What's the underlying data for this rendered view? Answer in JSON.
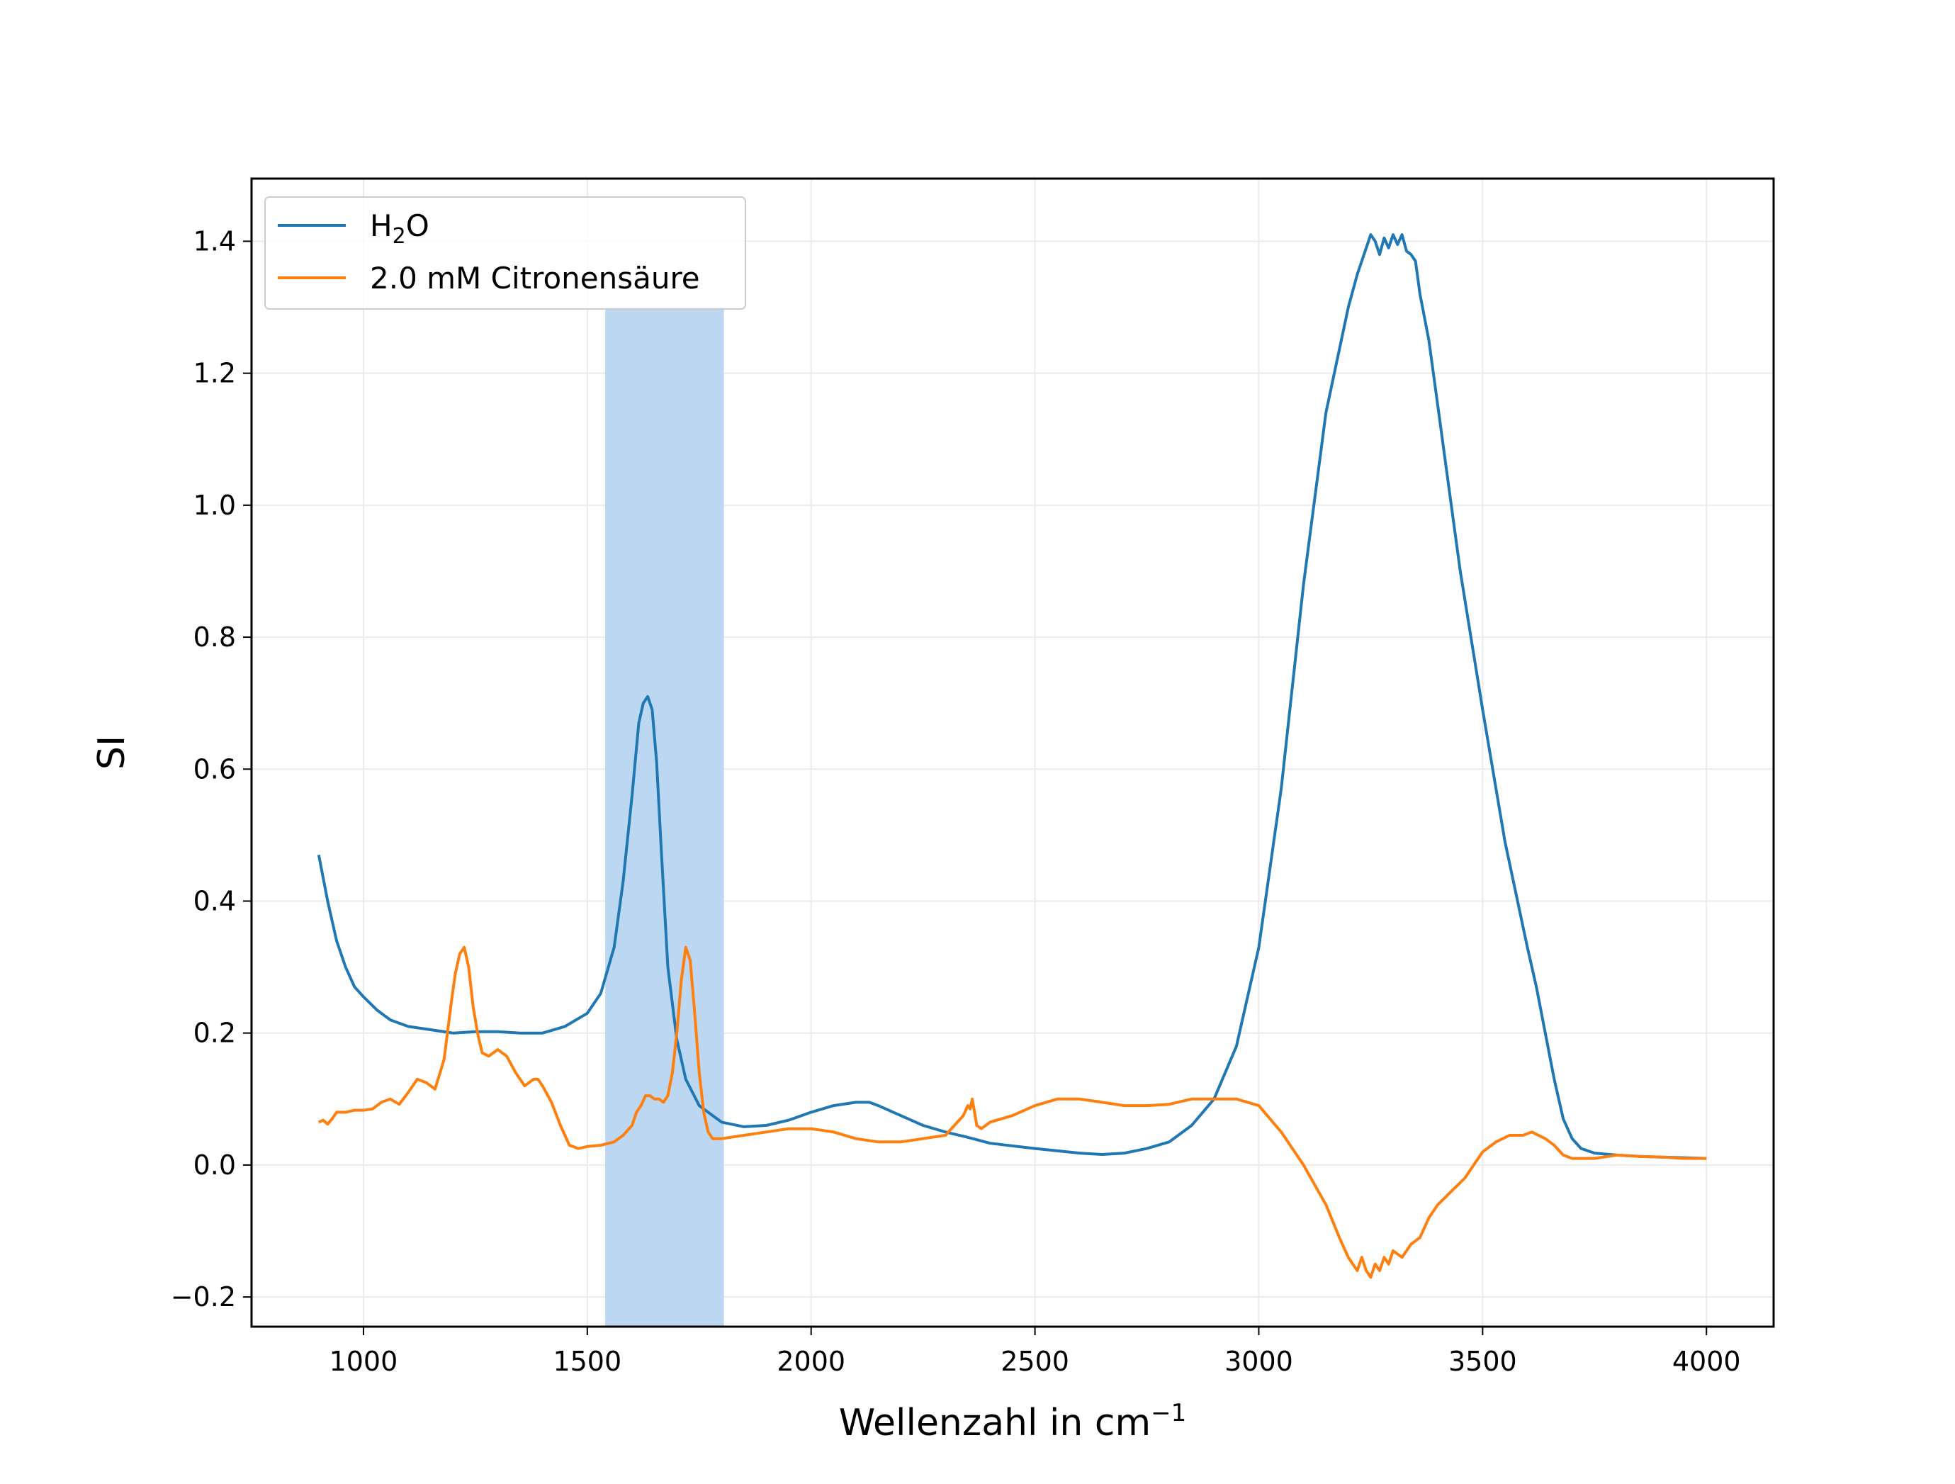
{
  "chart_data": {
    "type": "line",
    "title": "",
    "xlabel": "Wellenzahl in cm",
    "xlabel_sup": "−1",
    "ylabel": "SI",
    "xlim": [
      750,
      4150
    ],
    "ylim": [
      -0.245,
      1.495
    ],
    "xticks": [
      1000,
      1500,
      2000,
      2500,
      3000,
      3500,
      4000
    ],
    "yticks": [
      -0.2,
      0.0,
      0.2,
      0.4,
      0.6,
      0.8,
      1.0,
      1.2,
      1.4
    ],
    "ytick_labels": [
      "−0.2",
      "0.0",
      "0.2",
      "0.4",
      "0.6",
      "0.8",
      "1.0",
      "1.2",
      "1.4"
    ],
    "grid": true,
    "legend_position": "top-left",
    "highlight_band": {
      "x": [
        1540,
        1805
      ],
      "y": [
        -0.245,
        1.3
      ],
      "color": "#bcd7f1"
    },
    "series": [
      {
        "name": "H2O",
        "legend_main": "H",
        "legend_sub": "2",
        "legend_tail": "O",
        "color": "#1f77b4",
        "x": [
          900,
          920,
          940,
          960,
          980,
          1000,
          1030,
          1060,
          1100,
          1150,
          1200,
          1250,
          1300,
          1350,
          1400,
          1450,
          1500,
          1530,
          1560,
          1580,
          1600,
          1615,
          1625,
          1635,
          1645,
          1655,
          1665,
          1680,
          1700,
          1720,
          1750,
          1780,
          1800,
          1850,
          1900,
          1950,
          2000,
          2050,
          2100,
          2130,
          2150,
          2200,
          2250,
          2300,
          2350,
          2400,
          2500,
          2600,
          2650,
          2700,
          2750,
          2800,
          2850,
          2900,
          2950,
          3000,
          3050,
          3100,
          3150,
          3200,
          3220,
          3240,
          3250,
          3260,
          3270,
          3280,
          3290,
          3300,
          3310,
          3320,
          3330,
          3340,
          3350,
          3360,
          3380,
          3400,
          3420,
          3450,
          3500,
          3550,
          3600,
          3620,
          3640,
          3660,
          3680,
          3700,
          3720,
          3750,
          3800,
          3850,
          3900,
          4000
        ],
        "y": [
          0.47,
          0.4,
          0.34,
          0.3,
          0.27,
          0.255,
          0.235,
          0.22,
          0.21,
          0.205,
          0.2,
          0.202,
          0.202,
          0.2,
          0.2,
          0.21,
          0.23,
          0.26,
          0.33,
          0.43,
          0.56,
          0.67,
          0.7,
          0.71,
          0.69,
          0.61,
          0.48,
          0.3,
          0.19,
          0.13,
          0.09,
          0.075,
          0.065,
          0.058,
          0.06,
          0.068,
          0.08,
          0.09,
          0.095,
          0.095,
          0.09,
          0.075,
          0.06,
          0.05,
          0.042,
          0.033,
          0.025,
          0.018,
          0.016,
          0.018,
          0.025,
          0.035,
          0.06,
          0.1,
          0.18,
          0.33,
          0.57,
          0.88,
          1.14,
          1.3,
          1.35,
          1.39,
          1.41,
          1.4,
          1.38,
          1.405,
          1.39,
          1.41,
          1.395,
          1.41,
          1.385,
          1.38,
          1.37,
          1.32,
          1.25,
          1.15,
          1.05,
          0.9,
          0.69,
          0.49,
          0.33,
          0.27,
          0.2,
          0.13,
          0.07,
          0.04,
          0.025,
          0.018,
          0.015,
          0.013,
          0.012,
          0.01
        ]
      },
      {
        "name": "2.0 mM Citronensäure",
        "color": "#ff7f0e",
        "x": [
          900,
          910,
          920,
          930,
          940,
          960,
          980,
          1000,
          1020,
          1040,
          1060,
          1080,
          1100,
          1120,
          1140,
          1160,
          1180,
          1195,
          1205,
          1215,
          1225,
          1235,
          1245,
          1255,
          1265,
          1280,
          1300,
          1320,
          1340,
          1360,
          1380,
          1390,
          1400,
          1420,
          1440,
          1460,
          1480,
          1500,
          1530,
          1560,
          1580,
          1600,
          1610,
          1620,
          1630,
          1640,
          1650,
          1660,
          1670,
          1680,
          1690,
          1700,
          1710,
          1720,
          1730,
          1740,
          1750,
          1760,
          1770,
          1780,
          1800,
          1850,
          1900,
          1950,
          2000,
          2050,
          2100,
          2150,
          2200,
          2250,
          2300,
          2320,
          2340,
          2350,
          2355,
          2360,
          2365,
          2370,
          2380,
          2400,
          2450,
          2500,
          2550,
          2600,
          2650,
          2700,
          2750,
          2800,
          2850,
          2900,
          2950,
          3000,
          3050,
          3100,
          3150,
          3180,
          3200,
          3210,
          3220,
          3230,
          3240,
          3250,
          3260,
          3270,
          3280,
          3290,
          3300,
          3320,
          3340,
          3360,
          3380,
          3400,
          3430,
          3460,
          3500,
          3530,
          3560,
          3590,
          3610,
          3640,
          3660,
          3680,
          3700,
          3750,
          3800,
          3850,
          3900,
          3950,
          4000
        ],
        "y": [
          0.065,
          0.068,
          0.062,
          0.07,
          0.08,
          0.08,
          0.083,
          0.083,
          0.085,
          0.095,
          0.1,
          0.092,
          0.11,
          0.13,
          0.125,
          0.115,
          0.16,
          0.24,
          0.29,
          0.32,
          0.33,
          0.3,
          0.24,
          0.2,
          0.17,
          0.165,
          0.175,
          0.165,
          0.14,
          0.12,
          0.13,
          0.13,
          0.12,
          0.095,
          0.06,
          0.03,
          0.025,
          0.028,
          0.03,
          0.035,
          0.045,
          0.06,
          0.08,
          0.09,
          0.105,
          0.105,
          0.1,
          0.1,
          0.095,
          0.105,
          0.14,
          0.2,
          0.28,
          0.33,
          0.31,
          0.23,
          0.14,
          0.08,
          0.05,
          0.04,
          0.04,
          0.045,
          0.05,
          0.055,
          0.055,
          0.05,
          0.04,
          0.035,
          0.035,
          0.04,
          0.045,
          0.06,
          0.075,
          0.09,
          0.085,
          0.1,
          0.08,
          0.06,
          0.055,
          0.065,
          0.075,
          0.09,
          0.1,
          0.1,
          0.095,
          0.09,
          0.09,
          0.092,
          0.1,
          0.1,
          0.1,
          0.09,
          0.05,
          0.0,
          -0.06,
          -0.11,
          -0.14,
          -0.15,
          -0.16,
          -0.14,
          -0.16,
          -0.17,
          -0.15,
          -0.16,
          -0.14,
          -0.15,
          -0.13,
          -0.14,
          -0.12,
          -0.11,
          -0.08,
          -0.06,
          -0.04,
          -0.02,
          0.02,
          0.035,
          0.045,
          0.045,
          0.05,
          0.04,
          0.03,
          0.015,
          0.01,
          0.01,
          0.015,
          0.013,
          0.012,
          0.01,
          0.01
        ]
      }
    ]
  }
}
